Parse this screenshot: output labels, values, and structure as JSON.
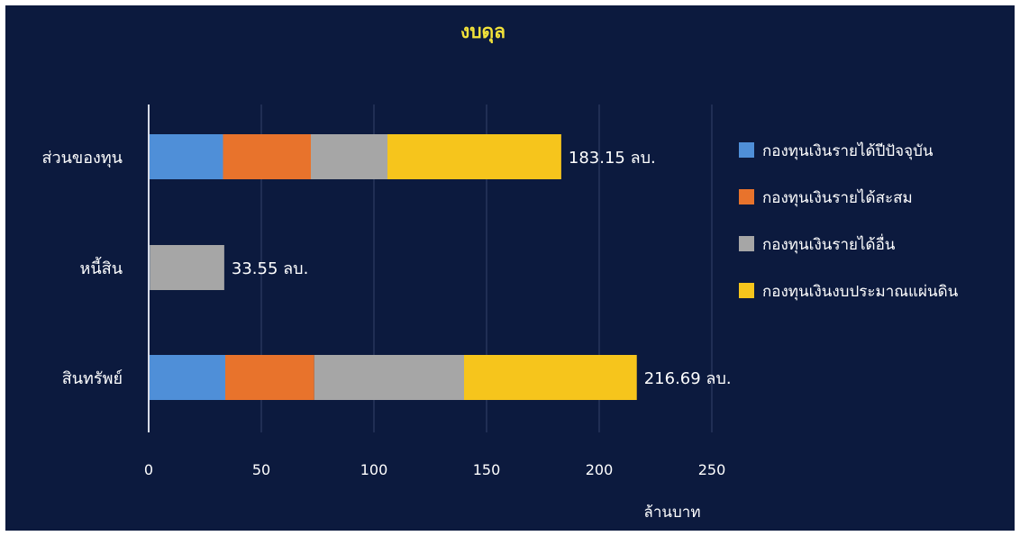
{
  "chart_data": {
    "type": "bar",
    "orientation": "horizontal",
    "stacked": true,
    "title": "งบดุล",
    "xlabel": "ล้านบาท",
    "ylabel": "",
    "xlim": [
      0,
      250
    ],
    "xticks": [
      0,
      50,
      100,
      150,
      200,
      250
    ],
    "grid": true,
    "legend_position": "right",
    "categories": [
      "ส่วนของทุน",
      "หนี้สิน",
      "สินทรัพย์"
    ],
    "series": [
      {
        "name": "กองทุนเงินรายได้ปีปัจจุบัน",
        "color": "#4f8fd8",
        "values": [
          33,
          0.5,
          34
        ]
      },
      {
        "name": "กองทุนเงินรายได้สะสม",
        "color": "#e8732c",
        "values": [
          39,
          0,
          39.5
        ]
      },
      {
        "name": "กองทุนเงินรายได้อื่น",
        "color": "#a6a6a6",
        "values": [
          34,
          33.05,
          66.5
        ]
      },
      {
        "name": "กองทุนเงินงบประมาณแผ่นดิน",
        "color": "#f6c51c",
        "values": [
          77.15,
          0,
          76.69
        ]
      }
    ],
    "data_labels": [
      "183.15 ลบ.",
      "33.55 ลบ.",
      "216.69 ลบ."
    ]
  }
}
